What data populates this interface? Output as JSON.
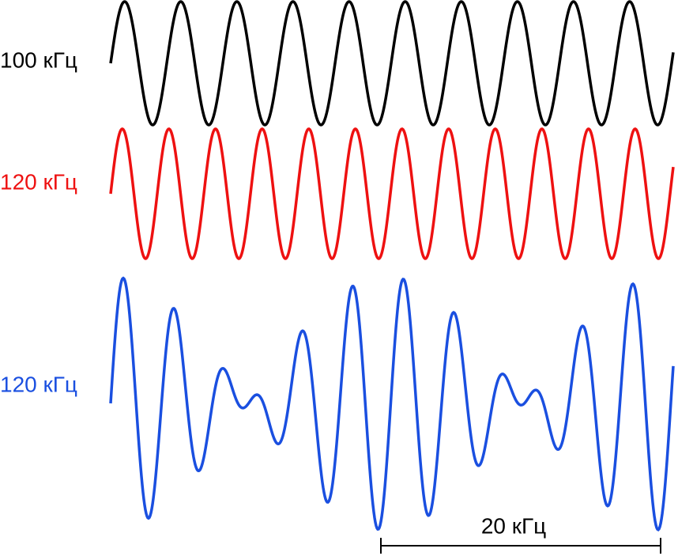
{
  "waves": [
    {
      "label": "100 кГц"
    },
    {
      "label": "120 кГц"
    },
    {
      "label": "120 кГц"
    }
  ],
  "scale": {
    "label": "20 кГц"
  }
}
